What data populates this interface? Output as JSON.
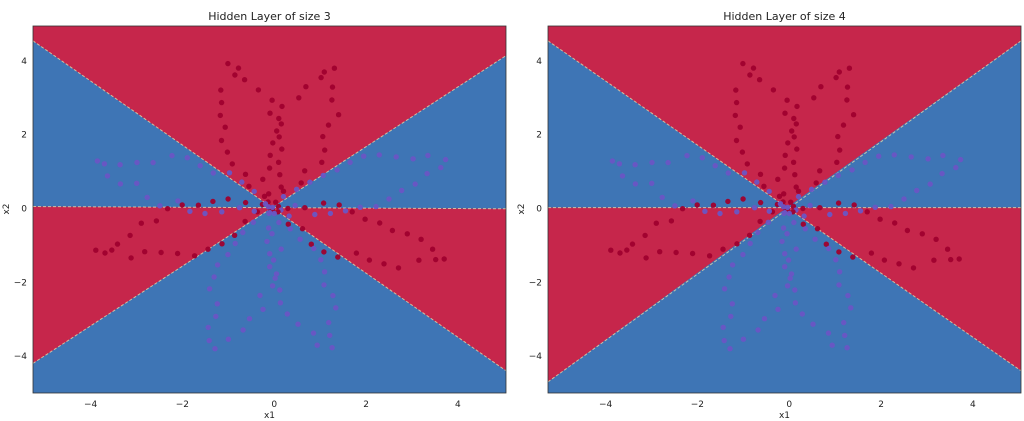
{
  "colors": {
    "red_region": "#c6264b",
    "blue_region": "#3e75b5",
    "red_point": "#a0002e",
    "blue_point": "#6a55c4",
    "boundary": "#e6d8a8",
    "axes_edge": "#333333"
  },
  "chart_data": [
    {
      "type": "scatter",
      "title": "Hidden Layer of size 3",
      "xlabel": "x1",
      "ylabel": "x2",
      "xlim": [
        -5.2,
        5.1
      ],
      "ylim": [
        -5.0,
        4.9
      ],
      "xticks": [
        -4,
        -2,
        0,
        2,
        4
      ],
      "yticks": [
        -4,
        -2,
        0,
        2,
        4
      ],
      "xtick_labels": [
        "−4",
        "−2",
        "0",
        "2",
        "4"
      ],
      "ytick_labels": [
        "−4",
        "−2",
        "0",
        "2",
        "4"
      ],
      "grid": false,
      "legend": "none",
      "decision_boundaries": [
        {
          "through": [
            [
              -5.2,
              4.5
            ],
            [
              5.1,
              -4.4
            ]
          ]
        },
        {
          "through": [
            [
              -5.2,
              -4.2
            ],
            [
              5.1,
              4.1
            ]
          ]
        },
        {
          "through": [
            [
              -5.2,
              0.03
            ],
            [
              5.1,
              -0.03
            ]
          ]
        }
      ],
      "region_classes": {
        "top": "red",
        "left": "blue",
        "right": "blue",
        "upper_middle_wedges": "blue",
        "lower_left": "red",
        "lower_right": "red",
        "bottom": "blue"
      },
      "petal_tip_angles_deg": [
        102,
        72,
        18,
        -22,
        198,
        162,
        252,
        288
      ],
      "petal_tip_radius": 4.0,
      "petal_class": [
        "red",
        "red",
        "blue",
        "red",
        "red",
        "blue",
        "blue",
        "blue"
      ],
      "points_per_petal": 25
    },
    {
      "type": "scatter",
      "title": "Hidden Layer of size 4",
      "xlabel": "x1",
      "ylabel": "x2",
      "xlim": [
        -5.2,
        5.1
      ],
      "ylim": [
        -5.0,
        4.9
      ],
      "xticks": [
        -4,
        -2,
        0,
        2,
        4
      ],
      "yticks": [
        -4,
        -2,
        0,
        2,
        4
      ],
      "xtick_labels": [
        "−4",
        "−2",
        "0",
        "2",
        "4"
      ],
      "ytick_labels": [
        "−4",
        "−2",
        "0",
        "2",
        "4"
      ],
      "grid": false,
      "legend": "none",
      "decision_boundaries": [
        {
          "through": [
            [
              -5.2,
              4.5
            ],
            [
              5.1,
              -4.4
            ]
          ]
        },
        {
          "through": [
            [
              -5.2,
              -4.7
            ],
            [
              5.1,
              4.5
            ]
          ]
        },
        {
          "through": [
            [
              -5.2,
              0.0
            ],
            [
              5.1,
              0.0
            ]
          ]
        }
      ],
      "region_classes": {
        "top": "red",
        "left": "blue",
        "right": "blue",
        "upper_middle_wedges": "blue",
        "lower_left": "red",
        "lower_right": "red",
        "bottom": "blue"
      },
      "petal_tip_angles_deg": [
        102,
        72,
        18,
        -22,
        198,
        162,
        252,
        288
      ],
      "petal_tip_radius": 4.0,
      "petal_class": [
        "red",
        "red",
        "blue",
        "red",
        "red",
        "blue",
        "blue",
        "blue"
      ],
      "points_per_petal": 25
    }
  ]
}
